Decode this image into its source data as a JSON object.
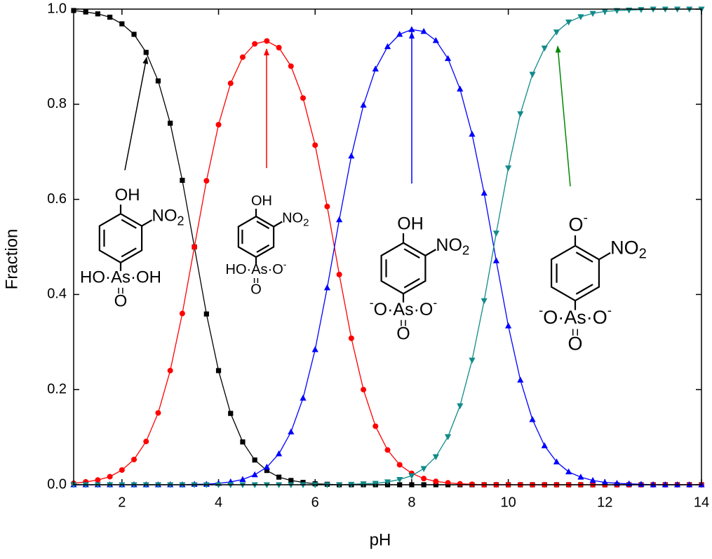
{
  "chart_data": {
    "type": "line",
    "xlabel": "pH",
    "ylabel": "Fraction",
    "xlim": [
      1,
      14
    ],
    "ylim": [
      0,
      1
    ],
    "xticks": [
      2,
      4,
      6,
      8,
      10,
      12,
      14
    ],
    "yticks": [
      {
        "value": 0,
        "label": "0.0"
      },
      {
        "value": 0.2,
        "label": "0.2"
      },
      {
        "value": 0.4,
        "label": "0.4"
      },
      {
        "value": 0.6,
        "label": "0.6"
      },
      {
        "value": 0.8,
        "label": "0.8"
      },
      {
        "value": 1,
        "label": "1.0"
      }
    ],
    "x": [
      1,
      1.25,
      1.5,
      1.75,
      2,
      2.25,
      2.5,
      2.75,
      3,
      3.25,
      3.5,
      3.75,
      4,
      4.25,
      4.5,
      4.75,
      5,
      5.25,
      5.5,
      5.75,
      6,
      6.25,
      6.5,
      6.75,
      7,
      7.25,
      7.5,
      7.75,
      8,
      8.25,
      8.5,
      8.75,
      9,
      9.25,
      9.5,
      9.75,
      10,
      10.25,
      10.5,
      10.75,
      11,
      11.25,
      11.5,
      11.75,
      12,
      12.25,
      12.5,
      12.75,
      13,
      13.25,
      13.5,
      13.75,
      14
    ],
    "series": [
      {
        "color": "#000000",
        "marker": "square",
        "values": [
          0.997,
          0.994,
          0.99,
          0.983,
          0.969,
          0.947,
          0.909,
          0.849,
          0.76,
          0.64,
          0.5,
          0.359,
          0.24,
          0.15,
          0.09,
          0.052,
          0.03,
          0.016,
          0.009,
          0.005,
          0.002,
          0.001,
          0,
          0,
          0,
          0,
          0,
          0,
          0,
          0,
          0,
          0,
          0,
          0,
          0,
          0,
          0,
          0,
          0,
          0,
          0,
          0,
          0,
          0,
          0,
          0,
          0,
          0,
          0,
          0,
          0,
          0,
          0
        ]
      },
      {
        "color": "#ff0000",
        "marker": "circle",
        "values": [
          0.003,
          0.006,
          0.01,
          0.017,
          0.031,
          0.053,
          0.091,
          0.151,
          0.24,
          0.36,
          0.5,
          0.639,
          0.757,
          0.844,
          0.899,
          0.927,
          0.933,
          0.919,
          0.88,
          0.813,
          0.714,
          0.585,
          0.442,
          0.308,
          0.2,
          0.123,
          0.073,
          0.042,
          0.024,
          0.013,
          0.007,
          0.004,
          0.002,
          0.001,
          0,
          0,
          0,
          0,
          0,
          0,
          0,
          0,
          0,
          0,
          0,
          0,
          0,
          0,
          0,
          0,
          0,
          0,
          0
        ]
      },
      {
        "color": "#0000ff",
        "marker": "triangle-up",
        "values": [
          0,
          0,
          0,
          0,
          0,
          0,
          0,
          0,
          0,
          0,
          0.001,
          0.001,
          0.003,
          0.006,
          0.011,
          0.021,
          0.037,
          0.065,
          0.111,
          0.182,
          0.284,
          0.414,
          0.557,
          0.691,
          0.798,
          0.874,
          0.921,
          0.947,
          0.957,
          0.953,
          0.934,
          0.896,
          0.832,
          0.737,
          0.613,
          0.471,
          0.334,
          0.22,
          0.137,
          0.082,
          0.048,
          0.027,
          0.016,
          0.009,
          0.005,
          0.003,
          0.002,
          0.001,
          0,
          0,
          0,
          0,
          0
        ]
      },
      {
        "color": "#128a8a",
        "marker": "triangle-down",
        "values": [
          0,
          0,
          0,
          0,
          0,
          0,
          0,
          0,
          0,
          0,
          0,
          0,
          0,
          0,
          0,
          0,
          0,
          0,
          0,
          0,
          0,
          0,
          0,
          0.001,
          0.002,
          0.003,
          0.006,
          0.011,
          0.019,
          0.034,
          0.059,
          0.101,
          0.166,
          0.262,
          0.387,
          0.529,
          0.666,
          0.78,
          0.863,
          0.918,
          0.952,
          0.973,
          0.984,
          0.991,
          0.995,
          0.997,
          0.998,
          0.999,
          1,
          1,
          1,
          1,
          1
        ]
      }
    ],
    "structures": [
      {
        "top": "OH",
        "nitro": "NO",
        "nitro_sub": "2",
        "left": "HO·",
        "center": "As",
        "right": "·OH",
        "bottom": "O"
      },
      {
        "top": "OH",
        "nitro": "NO",
        "nitro_sub": "2",
        "left": "HO·",
        "center": "As",
        "right": "·O",
        "right_sup": "-",
        "bottom": "O"
      },
      {
        "top": "OH",
        "nitro": "NO",
        "nitro_sub": "2",
        "left_sup": "-",
        "left": "O·",
        "center": "As",
        "right": "·O",
        "right_sup": "-",
        "bottom": "O"
      },
      {
        "top": "O",
        "top_sup": "-",
        "nitro": "NO",
        "nitro_sub": "2",
        "left_sup": "-",
        "left": "O·",
        "center": "As",
        "right": "·O",
        "right_sup": "-",
        "bottom": "O"
      }
    ]
  }
}
